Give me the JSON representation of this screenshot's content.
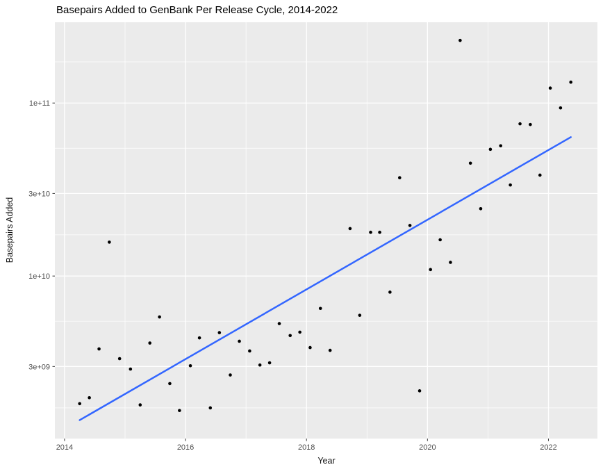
{
  "chart_data": {
    "type": "scatter",
    "title": "Basepairs Added to GenBank Per Release Cycle, 2014-2022",
    "xlabel": "Year",
    "ylabel": "Basepairs Added",
    "x_scale": "linear",
    "y_scale": "log10",
    "xlim": [
      2013.84,
      2022.81
    ],
    "ylim": [
      1150000000,
      293000000000
    ],
    "x_major_ticks": [
      2014,
      2016,
      2018,
      2020,
      2022
    ],
    "x_minor_ticks": [
      2015,
      2017,
      2019,
      2021
    ],
    "y_major_ticks": [
      {
        "label": "3e+09",
        "value": 3000000000
      },
      {
        "label": "1e+10",
        "value": 10000000000
      },
      {
        "label": "3e+10",
        "value": 30000000000
      },
      {
        "label": "1e+11",
        "value": 100000000000
      }
    ],
    "y_minor_ticks": [
      1730000000,
      5480000000,
      17300000000,
      54800000000,
      173000000000
    ],
    "grid": "white major+minor gridlines on gray panel",
    "legend": "none",
    "points": [
      [
        2014.25,
        1830000000
      ],
      [
        2014.41,
        1980000000
      ],
      [
        2014.57,
        3790000000
      ],
      [
        2014.74,
        15700000000
      ],
      [
        2014.91,
        3330000000
      ],
      [
        2015.09,
        2900000000
      ],
      [
        2015.25,
        1800000000
      ],
      [
        2015.41,
        4100000000
      ],
      [
        2015.57,
        5800000000
      ],
      [
        2015.74,
        2390000000
      ],
      [
        2015.9,
        1670000000
      ],
      [
        2016.08,
        3030000000
      ],
      [
        2016.23,
        4390000000
      ],
      [
        2016.41,
        1730000000
      ],
      [
        2016.56,
        4710000000
      ],
      [
        2016.74,
        2680000000
      ],
      [
        2016.89,
        4200000000
      ],
      [
        2017.06,
        3690000000
      ],
      [
        2017.23,
        3060000000
      ],
      [
        2017.39,
        3150000000
      ],
      [
        2017.55,
        5310000000
      ],
      [
        2017.73,
        4530000000
      ],
      [
        2017.89,
        4740000000
      ],
      [
        2018.06,
        3860000000
      ],
      [
        2018.23,
        6500000000
      ],
      [
        2018.39,
        3720000000
      ],
      [
        2018.72,
        18800000000
      ],
      [
        2018.88,
        5930000000
      ],
      [
        2019.06,
        17900000000
      ],
      [
        2019.21,
        17900000000
      ],
      [
        2019.38,
        8070000000
      ],
      [
        2019.54,
        37000000000
      ],
      [
        2019.71,
        19600000000
      ],
      [
        2019.87,
        2170000000
      ],
      [
        2020.05,
        10900000000
      ],
      [
        2020.21,
        16200000000
      ],
      [
        2020.38,
        12000000000
      ],
      [
        2020.54,
        230000000000
      ],
      [
        2020.71,
        44900000000
      ],
      [
        2020.88,
        24500000000
      ],
      [
        2021.04,
        54000000000
      ],
      [
        2021.21,
        56600000000
      ],
      [
        2021.37,
        33600000000
      ],
      [
        2021.53,
        75800000000
      ],
      [
        2021.7,
        75100000000
      ],
      [
        2021.86,
        38300000000
      ],
      [
        2022.03,
        122000000000
      ],
      [
        2022.2,
        93700000000
      ],
      [
        2022.37,
        132000000000
      ]
    ],
    "trend_line": {
      "type": "linear-fit-in-log-space",
      "x_start": 2014.25,
      "y_start": 1470000000,
      "x_end": 2022.37,
      "y_end": 63500000000
    }
  },
  "style": {
    "background": "#FFFFFF",
    "panel_bg": "#EBEBEB",
    "grid_color": "#FFFFFF",
    "point_color": "#000000",
    "trend_color": "#3366FF",
    "tick_color": "#333333",
    "tick_label_color": "#4D4D4D",
    "axis_title_color": "#111111",
    "title_color": "#000000"
  }
}
